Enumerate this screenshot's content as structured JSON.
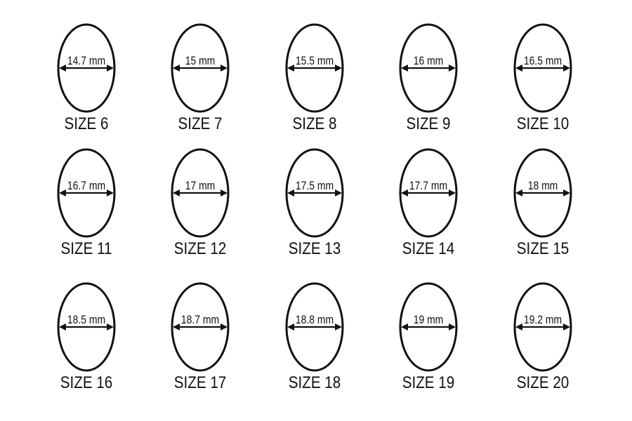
{
  "rings": [
    {
      "diameter": "14.7 mm",
      "size": "SIZE 6"
    },
    {
      "diameter": "15 mm",
      "size": "SIZE 7"
    },
    {
      "diameter": "15.5 mm",
      "size": "SIZE 8"
    },
    {
      "diameter": "16 mm",
      "size": "SIZE 9"
    },
    {
      "diameter": "16.5 mm",
      "size": "SIZE 10"
    },
    {
      "diameter": "16.7 mm",
      "size": "SIZE 11"
    },
    {
      "diameter": "17 mm",
      "size": "SIZE 12"
    },
    {
      "diameter": "17.5 mm",
      "size": "SIZE 13"
    },
    {
      "diameter": "17.7 mm",
      "size": "SIZE 14"
    },
    {
      "diameter": "18 mm",
      "size": "SIZE 15"
    },
    {
      "diameter": "18.5 mm",
      "size": "SIZE 16"
    },
    {
      "diameter": "18.7 mm",
      "size": "SIZE 17"
    },
    {
      "diameter": "18.8 mm",
      "size": "SIZE 18"
    },
    {
      "diameter": "19 mm",
      "size": "SIZE 19"
    },
    {
      "diameter": "19.2 mm",
      "size": "SIZE 20"
    }
  ],
  "colors": {
    "line": "#111111",
    "background": "#ffffff"
  }
}
